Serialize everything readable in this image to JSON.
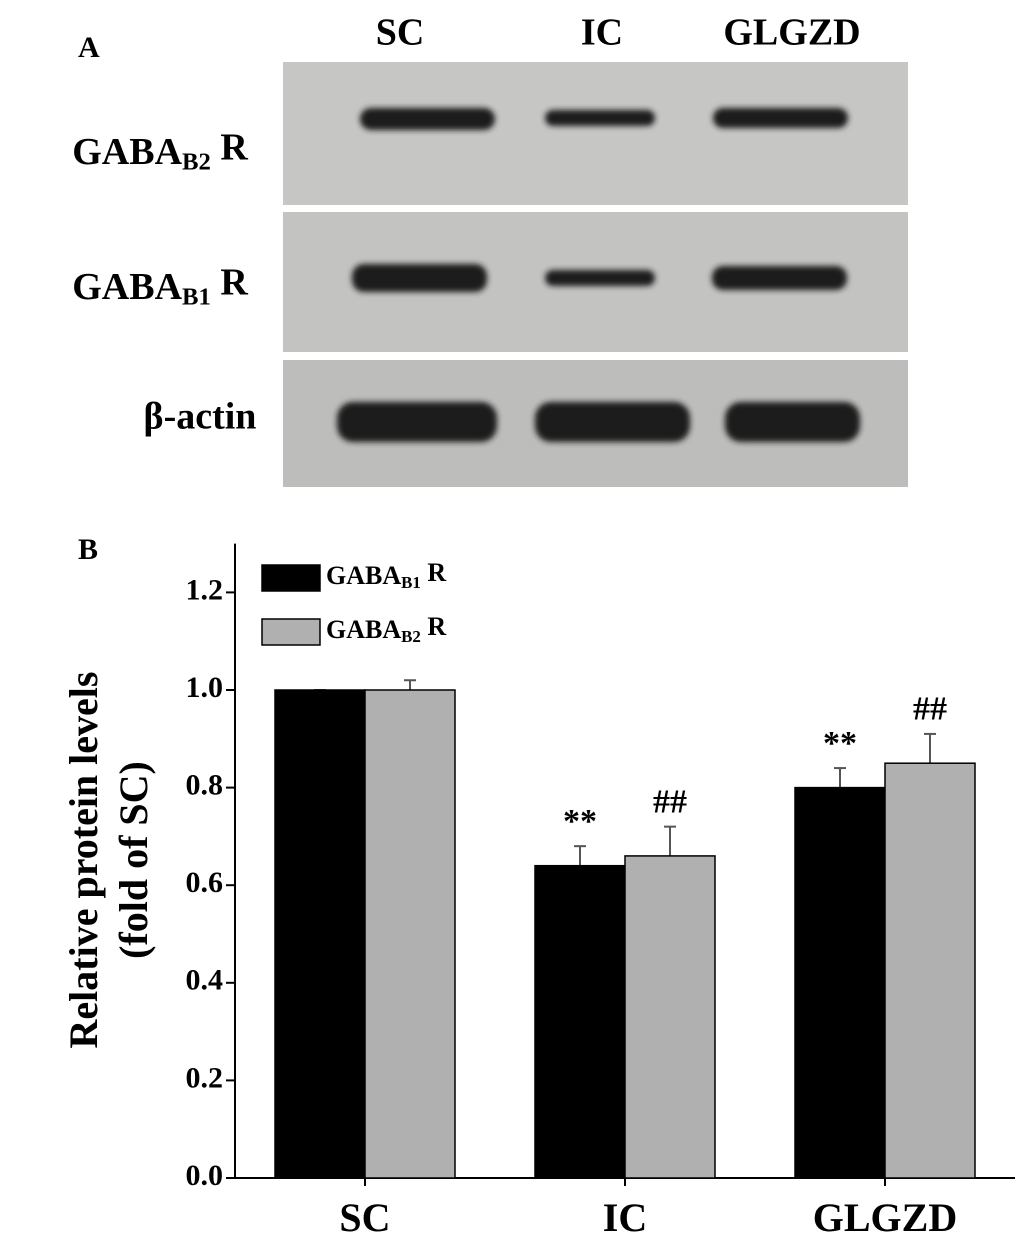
{
  "panel_a": {
    "label": "A",
    "lanes": [
      "SC",
      "IC",
      "GLGZD"
    ],
    "rows": [
      "GABAB2 R",
      "GABAB1 R",
      "β-actin"
    ]
  },
  "chart_data": {
    "type": "bar",
    "panel_label": "B",
    "y_label": [
      "Relative protein levels",
      "(fold of SC)"
    ],
    "categories": [
      "SC",
      "IC",
      "GLGZD"
    ],
    "series": [
      {
        "name": "GABAB1 R",
        "color": "#000000",
        "values": [
          1.0,
          0.64,
          0.8
        ],
        "errors": [
          0.0,
          0.04,
          0.04
        ],
        "annotations": [
          null,
          "**",
          "**"
        ]
      },
      {
        "name": "GABAB2 R",
        "color": "#b0b0b0",
        "values": [
          1.0,
          0.66,
          0.85
        ],
        "errors": [
          0.02,
          0.06,
          0.06
        ],
        "annotations": [
          null,
          "##",
          "##"
        ]
      }
    ],
    "ylim": [
      0,
      1.3
    ],
    "yticks": [
      {
        "value": 0,
        "label": "0.0"
      },
      0.2,
      0.4,
      0.6,
      0.8,
      {
        "value": 1,
        "label": "1.0"
      },
      1.2
    ],
    "legend": "top-left"
  }
}
